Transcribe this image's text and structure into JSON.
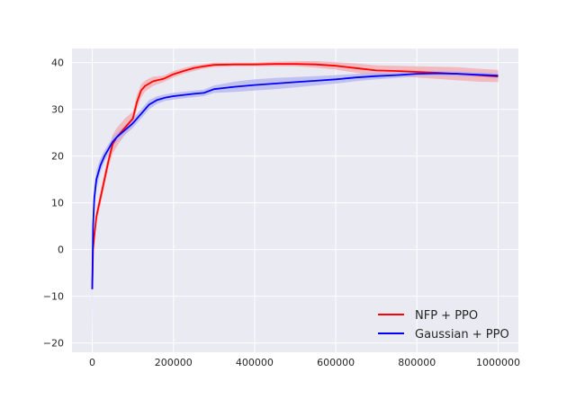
{
  "chart_data": {
    "type": "line",
    "title": "",
    "xlabel": "",
    "ylabel": "",
    "xlim": [
      -50000,
      1050000
    ],
    "ylim": [
      -22,
      43
    ],
    "xticks": [
      0,
      200000,
      400000,
      600000,
      800000,
      1000000
    ],
    "xtick_labels": [
      "0",
      "200000",
      "400000",
      "600000",
      "800000",
      "1000000"
    ],
    "yticks": [
      -20,
      -10,
      0,
      10,
      20,
      30,
      40
    ],
    "ytick_labels": [
      "−20",
      "−10",
      "0",
      "10",
      "20",
      "30",
      "40"
    ],
    "grid": true,
    "legend_position": "lower-right",
    "colors": {
      "background": "#EAEAF2",
      "grid": "#FFFFFF",
      "tick_text": "#262626",
      "nfp": "#FF0000",
      "nfp_band": "#F4A8AE",
      "gaussian": "#0000FF",
      "gaussian_band": "#B3B3F0"
    },
    "series": [
      {
        "name": "NFP + PPO",
        "color_key": "nfp",
        "band_key": "nfp_band",
        "x": [
          0,
          2000,
          5000,
          10000,
          20000,
          30000,
          40000,
          50000,
          60000,
          80000,
          100000,
          110000,
          120000,
          130000,
          140000,
          150000,
          175000,
          200000,
          225000,
          250000,
          275000,
          300000,
          350000,
          400000,
          450000,
          500000,
          550000,
          600000,
          650000,
          700000,
          750000,
          800000,
          850000,
          900000,
          950000,
          1000000
        ],
        "y": [
          -8.5,
          0,
          3,
          7,
          11,
          15,
          19,
          22.5,
          24,
          26,
          28,
          31.5,
          34,
          35,
          35.5,
          36,
          36.5,
          37.5,
          38.2,
          38.8,
          39.2,
          39.5,
          39.6,
          39.6,
          39.7,
          39.7,
          39.6,
          39.3,
          38.8,
          38.3,
          38.2,
          38.0,
          37.8,
          37.6,
          37.3,
          37.0
        ],
        "lo": [
          -8.5,
          -2,
          1.5,
          5.5,
          9.5,
          13.5,
          17.5,
          20.5,
          22,
          24.5,
          26.5,
          30,
          32.5,
          33.8,
          34.4,
          35,
          35.8,
          36.8,
          37.6,
          38.2,
          38.7,
          39,
          39.2,
          39.2,
          39.2,
          39.2,
          38.9,
          38.5,
          37.8,
          37.2,
          37,
          36.8,
          36.5,
          36.2,
          35.9,
          35.8
        ],
        "hi": [
          -8.5,
          2,
          4.5,
          8.5,
          12.5,
          16.5,
          20.5,
          24.5,
          26,
          28,
          29.5,
          33,
          35.3,
          36.1,
          36.6,
          37,
          37.2,
          38.2,
          38.8,
          39.4,
          39.7,
          40,
          40,
          40,
          40.2,
          40.3,
          40.3,
          40.1,
          39.8,
          39.4,
          39.3,
          39.2,
          39.1,
          39,
          38.7,
          38.4
        ]
      },
      {
        "name": "Gaussian + PPO",
        "color_key": "gaussian",
        "band_key": "gaussian_band",
        "x": [
          0,
          2000,
          5000,
          10000,
          20000,
          30000,
          40000,
          50000,
          60000,
          80000,
          100000,
          120000,
          140000,
          160000,
          180000,
          200000,
          250000,
          275000,
          300000,
          350000,
          400000,
          450000,
          500000,
          550000,
          600000,
          650000,
          700000,
          750000,
          800000,
          850000,
          900000,
          950000,
          1000000
        ],
        "y": [
          -8.5,
          5,
          11,
          15,
          18,
          20,
          21.5,
          23,
          24,
          25.5,
          27,
          29,
          31,
          32,
          32.5,
          32.8,
          33.3,
          33.5,
          34.3,
          34.8,
          35.2,
          35.5,
          35.8,
          36.1,
          36.4,
          36.8,
          37.1,
          37.3,
          37.6,
          37.7,
          37.6,
          37.4,
          37.2
        ],
        "lo": [
          -20,
          1,
          8.5,
          13,
          16.5,
          18.8,
          20.4,
          22,
          23,
          24.5,
          26,
          28,
          30,
          31.2,
          31.8,
          32.1,
          32.6,
          32.8,
          33.5,
          33.7,
          34,
          34.3,
          34.7,
          35.1,
          35.5,
          36,
          36.4,
          36.7,
          37.1,
          37.2,
          37.1,
          36.9,
          36.7
        ],
        "hi": [
          -3,
          9,
          13.5,
          17,
          19.5,
          21.2,
          22.6,
          24,
          25,
          26.5,
          28,
          30,
          32,
          32.8,
          33.2,
          33.5,
          34,
          34.2,
          35.1,
          35.9,
          36.4,
          36.7,
          36.9,
          37.1,
          37.3,
          37.6,
          37.8,
          37.9,
          38.1,
          38.2,
          38.1,
          37.9,
          37.7
        ]
      }
    ]
  }
}
